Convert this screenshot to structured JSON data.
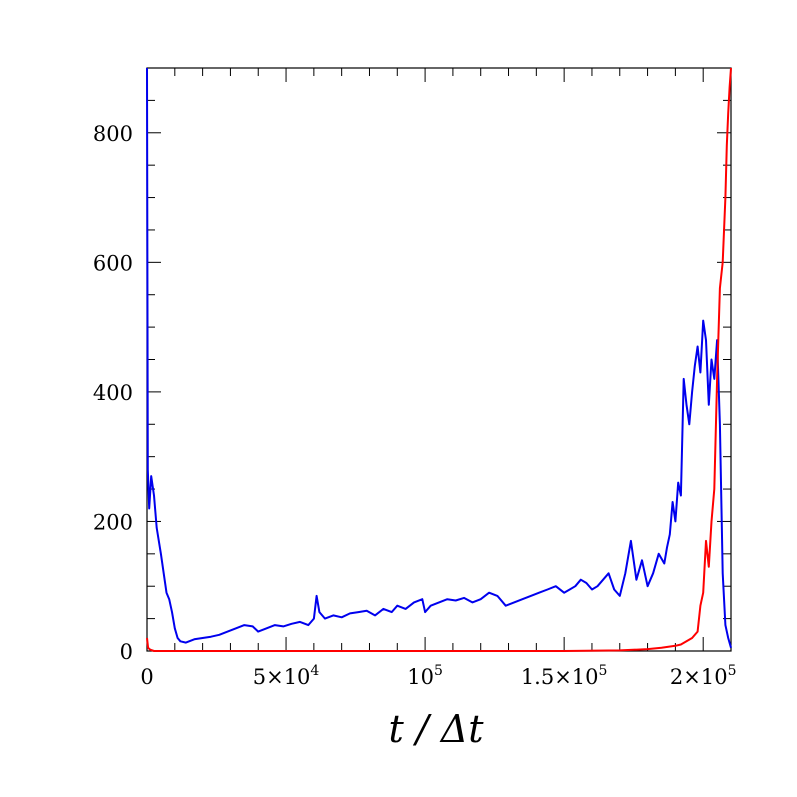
{
  "chart_data": {
    "type": "line",
    "title": "",
    "xlabel": "t / Δt",
    "ylabel": "",
    "xlim": [
      0,
      210000
    ],
    "ylim": [
      0,
      900
    ],
    "grid": false,
    "legend": "none",
    "x_ticks": [
      {
        "value": 0,
        "label": "0",
        "sup": ""
      },
      {
        "value": 50000,
        "label": "5×10",
        "sup": "4"
      },
      {
        "value": 100000,
        "label": "10",
        "sup": "5"
      },
      {
        "value": 150000,
        "label": "1.5×10",
        "sup": "5"
      },
      {
        "value": 200000,
        "label": "2×10",
        "sup": "5"
      }
    ],
    "y_ticks": [
      {
        "value": 0,
        "label": "0"
      },
      {
        "value": 200,
        "label": "200"
      },
      {
        "value": 400,
        "label": "400"
      },
      {
        "value": 600,
        "label": "600"
      },
      {
        "value": 800,
        "label": "800"
      }
    ],
    "series": [
      {
        "color": "#0000ee",
        "x": [
          0,
          300,
          800,
          1500,
          2500,
          3500,
          5000,
          6000,
          7000,
          8000,
          9000,
          10000,
          11000,
          12000,
          14000,
          17000,
          20000,
          23000,
          26000,
          29000,
          32000,
          35000,
          38000,
          40000,
          43000,
          46000,
          49000,
          52000,
          55000,
          58000,
          60000,
          61000,
          62000,
          64000,
          67000,
          70000,
          73000,
          76000,
          79000,
          82000,
          85000,
          88000,
          90000,
          93000,
          96000,
          99000,
          100000,
          102000,
          105000,
          108000,
          111000,
          114000,
          117000,
          120000,
          123000,
          126000,
          129000,
          132000,
          135000,
          138000,
          141000,
          144000,
          147000,
          150000,
          152000,
          154000,
          156000,
          158000,
          160000,
          162000,
          164000,
          166000,
          168000,
          170000,
          172000,
          174000,
          176000,
          178000,
          180000,
          182000,
          184000,
          186000,
          187000,
          188000,
          189000,
          190000,
          191000,
          192000,
          193000,
          194000,
          195000,
          196000,
          197000,
          198000,
          199000,
          200000,
          201000,
          202000,
          203000,
          204000,
          205000,
          206000,
          207000,
          208000,
          209000,
          210000
        ],
        "y": [
          900,
          280,
          220,
          270,
          240,
          190,
          150,
          120,
          90,
          80,
          60,
          35,
          20,
          15,
          13,
          18,
          20,
          22,
          25,
          30,
          35,
          40,
          38,
          30,
          35,
          40,
          38,
          42,
          45,
          40,
          50,
          85,
          60,
          50,
          55,
          52,
          58,
          60,
          62,
          55,
          65,
          60,
          70,
          65,
          75,
          80,
          60,
          70,
          75,
          80,
          78,
          82,
          75,
          80,
          90,
          85,
          70,
          75,
          80,
          85,
          90,
          95,
          100,
          90,
          95,
          100,
          110,
          105,
          95,
          100,
          110,
          120,
          95,
          85,
          120,
          170,
          110,
          140,
          100,
          120,
          150,
          135,
          160,
          180,
          230,
          200,
          260,
          240,
          420,
          380,
          350,
          400,
          440,
          470,
          430,
          510,
          480,
          380,
          450,
          420,
          480,
          350,
          120,
          40,
          20,
          5
        ]
      },
      {
        "color": "#ff0000",
        "x": [
          0,
          400,
          1200,
          2500,
          10000,
          50000,
          100000,
          150000,
          170000,
          180000,
          185000,
          190000,
          192000,
          194000,
          196000,
          198000,
          199000,
          200000,
          201000,
          202000,
          203000,
          204000,
          205000,
          206000,
          207000,
          208000,
          208500,
          209000,
          209500,
          210000
        ],
        "y": [
          20,
          5,
          2,
          0,
          0,
          0,
          0,
          0,
          1,
          3,
          5,
          8,
          10,
          15,
          20,
          30,
          70,
          90,
          170,
          130,
          200,
          250,
          420,
          560,
          600,
          700,
          780,
          830,
          870,
          900
        ]
      }
    ]
  }
}
